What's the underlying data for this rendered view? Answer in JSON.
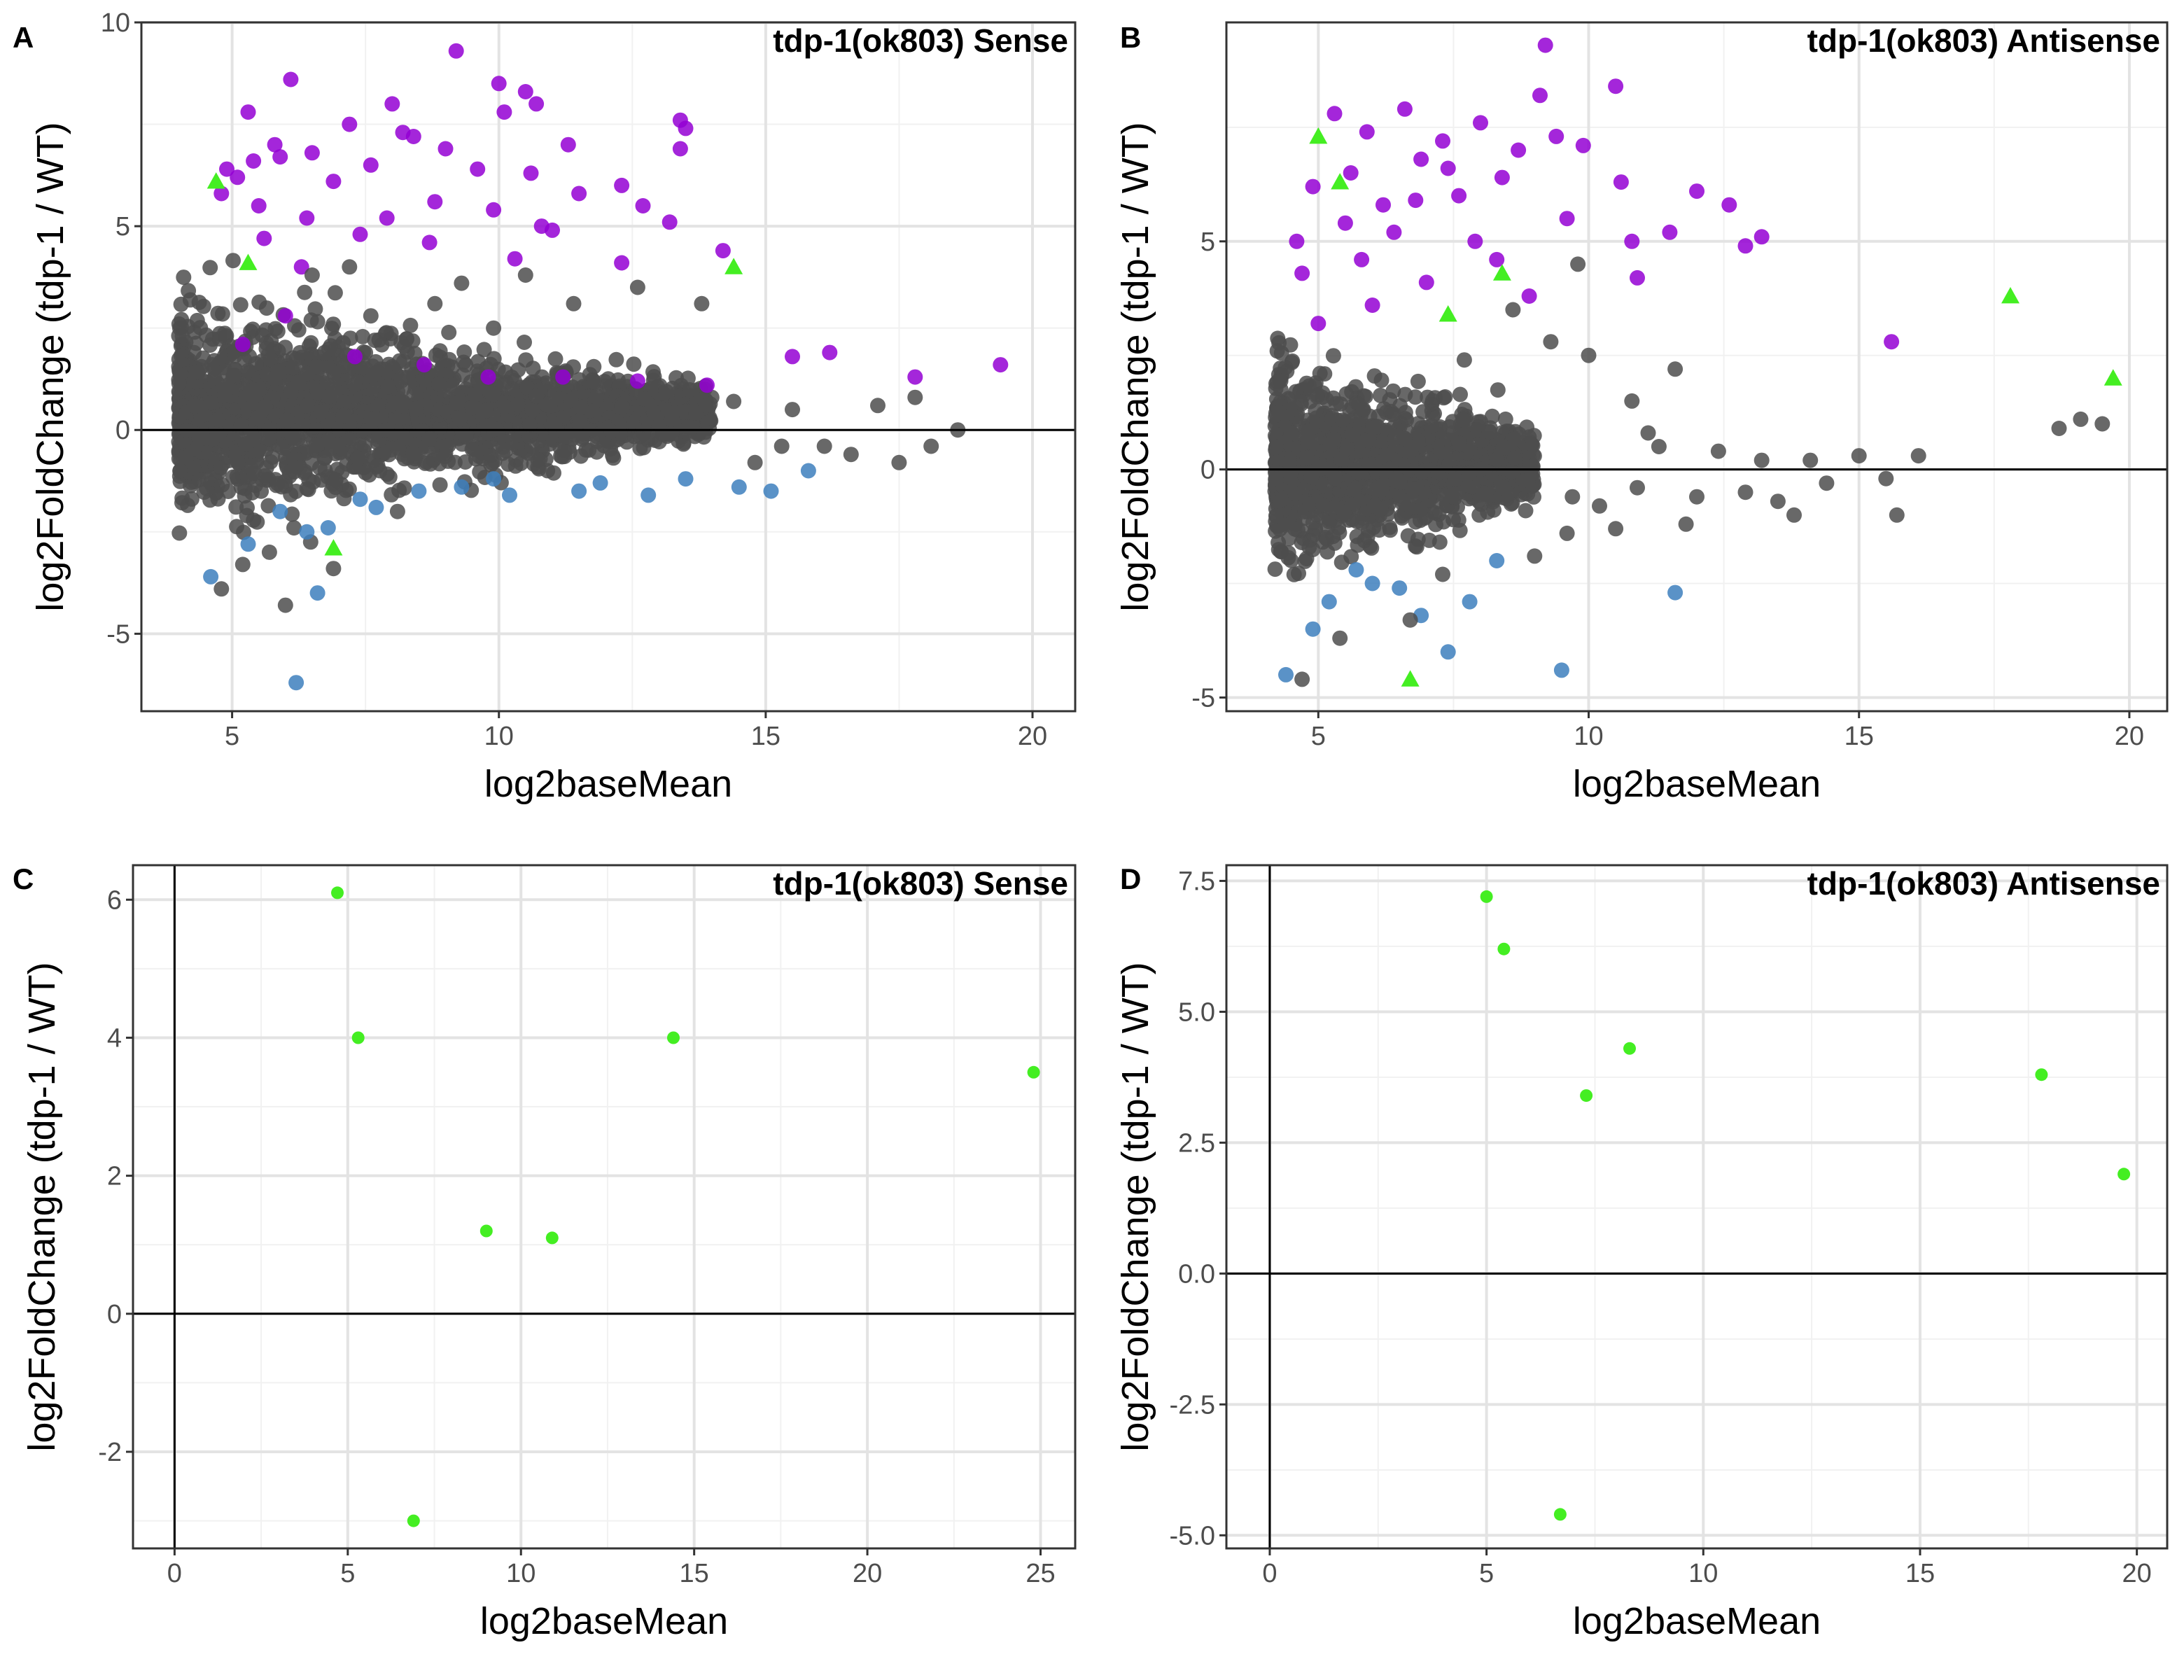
{
  "colors": {
    "up": "#9400d3",
    "down": "#3d7fbd",
    "ns": "#4d4d4d",
    "highlight": "#44ee22"
  },
  "chart_data": [
    {
      "id": "A",
      "letter": "A",
      "type": "scatter",
      "title": "tdp-1(ok803) Sense",
      "xlabel": "log2baseMean",
      "ylabel": "log2FoldChange (tdp-1 / WT)",
      "xlim": [
        3.3,
        20.8
      ],
      "ylim": [
        -6.9,
        10
      ],
      "xticks": [
        5,
        10,
        15,
        20
      ],
      "yticks": [
        -5,
        0,
        5,
        10
      ],
      "hline": 0,
      "highlight_shape": "triangle",
      "cloud": {
        "xmin": 4,
        "xmax": 14,
        "ybase": 0.4,
        "halfwidth_start": 2.7,
        "halfwidth_end": 0.7,
        "count": 2500
      },
      "series": [
        {
          "name": "up",
          "color": "up",
          "points": [
            [
              4.8,
              5.8
            ],
            [
              5.1,
              6.2
            ],
            [
              5.4,
              6.6
            ],
            [
              5.8,
              7.0
            ],
            [
              6.1,
              8.6
            ],
            [
              6.5,
              6.8
            ],
            [
              4.9,
              6.4
            ],
            [
              5.3,
              7.8
            ],
            [
              5.6,
              4.7
            ],
            [
              6.3,
              4.0
            ],
            [
              7.2,
              7.5
            ],
            [
              7.6,
              6.5
            ],
            [
              8.0,
              8.0
            ],
            [
              8.4,
              7.2
            ],
            [
              8.8,
              5.6
            ],
            [
              9.2,
              9.3
            ],
            [
              9.6,
              6.4
            ],
            [
              10.0,
              8.5
            ],
            [
              10.5,
              8.3
            ],
            [
              10.6,
              6.3
            ],
            [
              10.8,
              5.0
            ],
            [
              11.3,
              7.0
            ],
            [
              11.5,
              5.8
            ],
            [
              12.3,
              6.0
            ],
            [
              12.7,
              5.5
            ],
            [
              13.2,
              5.1
            ],
            [
              13.4,
              7.6
            ],
            [
              13.4,
              6.9
            ],
            [
              13.5,
              7.4
            ],
            [
              7.9,
              5.2
            ],
            [
              8.7,
              4.6
            ],
            [
              9.9,
              5.4
            ],
            [
              10.3,
              4.2
            ],
            [
              11.0,
              4.9
            ],
            [
              12.3,
              4.1
            ],
            [
              14.2,
              4.4
            ],
            [
              16.2,
              1.9
            ],
            [
              17.8,
              1.3
            ],
            [
              19.4,
              1.6
            ],
            [
              5.2,
              2.1
            ],
            [
              6.0,
              2.8
            ],
            [
              7.3,
              1.8
            ],
            [
              8.6,
              1.6
            ],
            [
              9.8,
              1.3
            ],
            [
              11.2,
              1.3
            ],
            [
              12.6,
              1.2
            ],
            [
              13.9,
              1.1
            ],
            [
              15.5,
              1.8
            ],
            [
              5.5,
              5.5
            ],
            [
              6.9,
              6.1
            ],
            [
              7.4,
              4.8
            ],
            [
              8.2,
              7.3
            ],
            [
              9.0,
              6.9
            ],
            [
              10.1,
              7.8
            ],
            [
              10.7,
              8.0
            ],
            [
              5.9,
              6.7
            ],
            [
              6.4,
              5.2
            ]
          ]
        },
        {
          "name": "down",
          "color": "down",
          "points": [
            [
              4.6,
              -3.6
            ],
            [
              6.2,
              -6.2
            ],
            [
              6.4,
              -2.5
            ],
            [
              6.6,
              -4.0
            ],
            [
              6.8,
              -2.4
            ],
            [
              7.4,
              -1.7
            ],
            [
              8.5,
              -1.5
            ],
            [
              9.3,
              -1.4
            ],
            [
              10.2,
              -1.6
            ],
            [
              11.5,
              -1.5
            ],
            [
              12.8,
              -1.6
            ],
            [
              14.5,
              -1.4
            ],
            [
              15.1,
              -1.5
            ],
            [
              15.8,
              -1.0
            ],
            [
              5.3,
              -2.8
            ],
            [
              5.9,
              -2.0
            ],
            [
              7.7,
              -1.9
            ],
            [
              9.9,
              -1.2
            ],
            [
              11.9,
              -1.3
            ],
            [
              13.5,
              -1.2
            ]
          ]
        },
        {
          "name": "ns-extra",
          "color": "ns",
          "points": [
            [
              4.8,
              -3.9
            ],
            [
              5.2,
              -3.3
            ],
            [
              6.0,
              -4.3
            ],
            [
              8.1,
              -2.0
            ],
            [
              9.3,
              3.6
            ],
            [
              10.5,
              3.8
            ],
            [
              11.4,
              3.1
            ],
            [
              12.6,
              3.5
            ],
            [
              13.8,
              3.1
            ],
            [
              15.5,
              0.5
            ],
            [
              16.1,
              -0.4
            ],
            [
              17.1,
              0.6
            ],
            [
              17.5,
              -0.8
            ],
            [
              18.6,
              0.0
            ],
            [
              18.1,
              -0.4
            ],
            [
              17.8,
              0.8
            ],
            [
              16.6,
              -0.6
            ],
            [
              15.3,
              -0.4
            ],
            [
              14.8,
              -0.8
            ],
            [
              14.4,
              0.7
            ],
            [
              7.6,
              2.8
            ],
            [
              8.8,
              3.1
            ],
            [
              9.9,
              2.5
            ],
            [
              6.5,
              3.8
            ],
            [
              7.2,
              4.0
            ],
            [
              5.7,
              -3.0
            ],
            [
              6.9,
              -3.4
            ]
          ]
        }
      ],
      "highlight": [
        [
          4.7,
          6.1
        ],
        [
          5.3,
          4.1
        ],
        [
          6.9,
          -2.9
        ],
        [
          14.4,
          4.0
        ]
      ]
    },
    {
      "id": "B",
      "letter": "B",
      "type": "scatter",
      "title": "tdp-1(ok803) Antisense",
      "xlabel": "log2baseMean",
      "ylabel": "log2FoldChange (tdp-1 / WT)",
      "xlim": [
        3.3,
        20.7
      ],
      "ylim": [
        -5.3,
        9.8
      ],
      "xticks": [
        5,
        10,
        15,
        20
      ],
      "yticks": [
        -5,
        0,
        5
      ],
      "hline": 0,
      "highlight_shape": "triangle",
      "cloud": {
        "xmin": 4.2,
        "xmax": 9,
        "ybase": 0.1,
        "halfwidth_start": 2.4,
        "halfwidth_end": 0.8,
        "count": 1400
      },
      "series": [
        {
          "name": "up",
          "color": "up",
          "points": [
            [
              4.6,
              5.0
            ],
            [
              4.9,
              6.2
            ],
            [
              5.3,
              7.8
            ],
            [
              5.6,
              6.5
            ],
            [
              5.9,
              7.4
            ],
            [
              6.2,
              5.8
            ],
            [
              6.6,
              7.9
            ],
            [
              6.9,
              6.8
            ],
            [
              7.3,
              7.2
            ],
            [
              7.6,
              6.0
            ],
            [
              8.0,
              7.6
            ],
            [
              8.4,
              6.4
            ],
            [
              8.7,
              7.0
            ],
            [
              9.1,
              8.2
            ],
            [
              9.4,
              7.3
            ],
            [
              9.2,
              9.3
            ],
            [
              9.9,
              7.1
            ],
            [
              10.5,
              8.4
            ],
            [
              10.6,
              6.3
            ],
            [
              10.8,
              5.0
            ],
            [
              11.5,
              5.2
            ],
            [
              12.0,
              6.1
            ],
            [
              12.6,
              5.8
            ],
            [
              12.9,
              4.9
            ],
            [
              13.2,
              5.1
            ],
            [
              10.9,
              4.2
            ],
            [
              9.6,
              5.5
            ],
            [
              7.9,
              5.0
            ],
            [
              5.8,
              4.6
            ],
            [
              6.4,
              5.2
            ],
            [
              7.0,
              4.1
            ],
            [
              8.3,
              4.6
            ],
            [
              15.6,
              2.8
            ],
            [
              5.0,
              3.2
            ],
            [
              6.0,
              3.6
            ],
            [
              8.9,
              3.8
            ],
            [
              4.7,
              4.3
            ],
            [
              5.5,
              5.4
            ],
            [
              6.8,
              5.9
            ],
            [
              7.4,
              6.6
            ]
          ]
        },
        {
          "name": "down",
          "color": "down",
          "points": [
            [
              4.4,
              -4.5
            ],
            [
              4.9,
              -3.5
            ],
            [
              5.2,
              -2.9
            ],
            [
              6.0,
              -2.5
            ],
            [
              6.9,
              -3.2
            ],
            [
              7.4,
              -4.0
            ],
            [
              7.8,
              -2.9
            ],
            [
              8.3,
              -2.0
            ],
            [
              9.5,
              -4.4
            ],
            [
              11.6,
              -2.7
            ],
            [
              6.5,
              -2.6
            ],
            [
              5.7,
              -2.2
            ]
          ]
        },
        {
          "name": "ns-extra",
          "color": "ns",
          "points": [
            [
              4.7,
              -4.6
            ],
            [
              5.4,
              -3.7
            ],
            [
              6.7,
              -3.3
            ],
            [
              7.3,
              -2.3
            ],
            [
              9.0,
              -1.9
            ],
            [
              9.6,
              -1.4
            ],
            [
              10.2,
              -0.8
            ],
            [
              10.9,
              -0.4
            ],
            [
              11.3,
              0.5
            ],
            [
              11.8,
              -1.2
            ],
            [
              12.4,
              0.4
            ],
            [
              12.9,
              -0.5
            ],
            [
              13.2,
              0.2
            ],
            [
              13.8,
              -1.0
            ],
            [
              14.4,
              -0.3
            ],
            [
              15.0,
              0.3
            ],
            [
              15.5,
              -0.2
            ],
            [
              16.1,
              0.3
            ],
            [
              15.7,
              -1.0
            ],
            [
              18.7,
              0.9
            ],
            [
              19.1,
              1.1
            ],
            [
              19.5,
              1.0
            ],
            [
              10.0,
              2.5
            ],
            [
              10.8,
              1.5
            ],
            [
              11.6,
              2.2
            ],
            [
              9.3,
              2.8
            ],
            [
              9.8,
              4.5
            ],
            [
              8.6,
              3.5
            ],
            [
              7.7,
              2.4
            ],
            [
              11.1,
              0.8
            ],
            [
              12.0,
              -0.6
            ],
            [
              13.5,
              -0.7
            ],
            [
              14.1,
              0.2
            ],
            [
              10.5,
              -1.3
            ],
            [
              9.7,
              -0.6
            ]
          ]
        }
      ],
      "highlight": [
        [
          5.0,
          7.3
        ],
        [
          5.4,
          6.3
        ],
        [
          6.7,
          -4.6
        ],
        [
          7.4,
          3.4
        ],
        [
          8.4,
          4.3
        ],
        [
          17.8,
          3.8
        ],
        [
          19.7,
          2.0
        ]
      ]
    },
    {
      "id": "C",
      "letter": "C",
      "type": "scatter",
      "title": "tdp-1(ok803) Sense",
      "xlabel": "log2baseMean",
      "ylabel": "log2FoldChange (tdp-1 / WT)",
      "xlim": [
        -1.2,
        26.0
      ],
      "ylim": [
        -3.4,
        6.5
      ],
      "xticks": [
        0,
        5,
        10,
        15,
        20,
        25
      ],
      "yticks": [
        -2,
        0,
        2,
        4,
        6
      ],
      "hline": 0,
      "vline": 0,
      "highlight_shape": "circle",
      "series": [],
      "highlight": [
        [
          4.7,
          6.1
        ],
        [
          5.3,
          4.0
        ],
        [
          6.9,
          -3.0
        ],
        [
          9.0,
          1.2
        ],
        [
          10.9,
          1.1
        ],
        [
          14.4,
          4.0
        ],
        [
          24.8,
          3.5
        ]
      ]
    },
    {
      "id": "D",
      "letter": "D",
      "type": "scatter",
      "title": "tdp-1(ok803) Antisense",
      "xlabel": "log2baseMean",
      "ylabel": "log2FoldChange (tdp-1 / WT)",
      "xlim": [
        -1.0,
        20.7
      ],
      "ylim": [
        -5.25,
        7.8
      ],
      "xticks": [
        0,
        5,
        10,
        15,
        20
      ],
      "yticks": [
        -5.0,
        -2.5,
        0.0,
        2.5,
        5.0,
        7.5
      ],
      "ytick_labels": [
        "-5.0",
        "-2.5",
        "0.0",
        "2.5",
        "5.0",
        "7.5"
      ],
      "hline": 0,
      "vline": 0,
      "highlight_shape": "circle",
      "series": [],
      "highlight": [
        [
          5.0,
          7.2
        ],
        [
          5.4,
          6.2
        ],
        [
          6.7,
          -4.6
        ],
        [
          7.3,
          3.4
        ],
        [
          8.3,
          4.3
        ],
        [
          17.8,
          3.8
        ],
        [
          19.7,
          1.9
        ]
      ]
    }
  ]
}
